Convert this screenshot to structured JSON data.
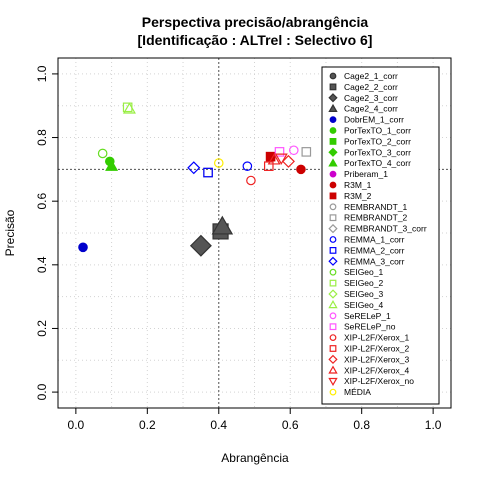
{
  "chart_data": {
    "type": "scatter",
    "title": "Perspectiva precisão/abrangência",
    "subtitle": "[Identificação : ALTrel : Selectivo 6]",
    "xlabel": "Abrangência",
    "ylabel": "Precisão",
    "xlim": [
      -0.05,
      1.05
    ],
    "ylim": [
      -0.05,
      1.05
    ],
    "xticks": [
      "0.0",
      "0.2",
      "0.4",
      "0.6",
      "0.8",
      "1.0"
    ],
    "yticks": [
      "0.0",
      "0.2",
      "0.4",
      "0.6",
      "0.8",
      "1.0"
    ],
    "grid": true,
    "legend_position": "right",
    "reference_lines": {
      "x": 0.4,
      "y": 0.7
    },
    "series": [
      {
        "name": "Cage2_1_corr",
        "shape": "circle",
        "filled": true,
        "color": "#555555",
        "points": []
      },
      {
        "name": "Cage2_2_corr",
        "shape": "square",
        "filled": true,
        "color": "#555555",
        "points": [
          [
            0.405,
            0.505
          ]
        ]
      },
      {
        "name": "Cage2_3_corr",
        "shape": "diamond",
        "filled": true,
        "color": "#555555",
        "points": [
          [
            0.35,
            0.46
          ]
        ]
      },
      {
        "name": "Cage2_4_corr",
        "shape": "triangle",
        "filled": true,
        "color": "#555555",
        "points": [
          [
            0.41,
            0.52
          ]
        ]
      },
      {
        "name": "DobrEM_1_corr",
        "shape": "circle",
        "filled": true,
        "color": "#0000cc",
        "points": [
          [
            0.02,
            0.455
          ]
        ]
      },
      {
        "name": "PorTexTO_1_corr",
        "shape": "circle",
        "filled": true,
        "color": "#33cc00",
        "points": [
          [
            0.095,
            0.725
          ]
        ]
      },
      {
        "name": "PorTexTO_2_corr",
        "shape": "square",
        "filled": true,
        "color": "#33cc00",
        "points": []
      },
      {
        "name": "PorTexTO_3_corr",
        "shape": "diamond",
        "filled": true,
        "color": "#33cc00",
        "points": []
      },
      {
        "name": "PorTexTO_4_corr",
        "shape": "triangle",
        "filled": true,
        "color": "#33cc00",
        "points": [
          [
            0.1,
            0.71
          ]
        ]
      },
      {
        "name": "Priberam_1",
        "shape": "circle",
        "filled": true,
        "color": "#cc00cc",
        "points": []
      },
      {
        "name": "R3M_1",
        "shape": "circle",
        "filled": true,
        "color": "#cc0000",
        "points": [
          [
            0.63,
            0.7
          ]
        ]
      },
      {
        "name": "R3M_2",
        "shape": "square",
        "filled": true,
        "color": "#cc0000",
        "points": [
          [
            0.545,
            0.74
          ]
        ]
      },
      {
        "name": "REMBRANDT_1",
        "shape": "circle",
        "filled": false,
        "color": "#999999",
        "points": []
      },
      {
        "name": "REMBRANDT_2",
        "shape": "square",
        "filled": false,
        "color": "#999999",
        "points": [
          [
            0.645,
            0.755
          ],
          [
            0.37,
            0.69
          ]
        ]
      },
      {
        "name": "REMBRANDT_3_corr",
        "shape": "diamond",
        "filled": false,
        "color": "#999999",
        "points": []
      },
      {
        "name": "REMMA_1_corr",
        "shape": "circle",
        "filled": false,
        "color": "#0000ff",
        "points": [
          [
            0.48,
            0.71
          ]
        ]
      },
      {
        "name": "REMMA_2_corr",
        "shape": "square",
        "filled": false,
        "color": "#0000ff",
        "points": [
          [
            0.37,
            0.69
          ]
        ]
      },
      {
        "name": "REMMA_3_corr",
        "shape": "diamond",
        "filled": false,
        "color": "#0000ff",
        "points": [
          [
            0.33,
            0.705
          ]
        ]
      },
      {
        "name": "SEIGeo_1",
        "shape": "circle",
        "filled": false,
        "color": "#66dd22",
        "points": [
          [
            0.075,
            0.75
          ]
        ]
      },
      {
        "name": "SEIGeo_2",
        "shape": "square",
        "filled": false,
        "color": "#99ee44",
        "points": [
          [
            0.145,
            0.895
          ]
        ]
      },
      {
        "name": "SEIGeo_3",
        "shape": "diamond",
        "filled": false,
        "color": "#99ee44",
        "points": []
      },
      {
        "name": "SEIGeo_4",
        "shape": "triangle",
        "filled": false,
        "color": "#99ee44",
        "points": [
          [
            0.15,
            0.89
          ]
        ]
      },
      {
        "name": "SeRELeP_1",
        "shape": "circle",
        "filled": false,
        "color": "#ff55ff",
        "points": [
          [
            0.61,
            0.76
          ]
        ]
      },
      {
        "name": "SeRELeP_no",
        "shape": "square",
        "filled": false,
        "color": "#ff55ff",
        "points": [
          [
            0.57,
            0.755
          ]
        ]
      },
      {
        "name": "XIP-L2F/Xerox_1",
        "shape": "circle",
        "filled": false,
        "color": "#ee2222",
        "points": [
          [
            0.49,
            0.665
          ]
        ]
      },
      {
        "name": "XIP-L2F/Xerox_2",
        "shape": "square",
        "filled": false,
        "color": "#ee2222",
        "points": [
          [
            0.54,
            0.71
          ]
        ]
      },
      {
        "name": "XIP-L2F/Xerox_3",
        "shape": "diamond",
        "filled": false,
        "color": "#ee2222",
        "points": [
          [
            0.595,
            0.725
          ]
        ]
      },
      {
        "name": "XIP-L2F/Xerox_4",
        "shape": "triangle",
        "filled": false,
        "color": "#ee2222",
        "points": [
          [
            0.555,
            0.73
          ]
        ]
      },
      {
        "name": "XIP-L2F/Xerox_no",
        "shape": "triangle-down",
        "filled": false,
        "color": "#ee2222",
        "points": [
          [
            0.575,
            0.735
          ]
        ]
      },
      {
        "name": "MÉDIA",
        "shape": "circle",
        "filled": false,
        "color": "#ffee00",
        "points": [
          [
            0.4,
            0.72
          ]
        ]
      }
    ]
  }
}
